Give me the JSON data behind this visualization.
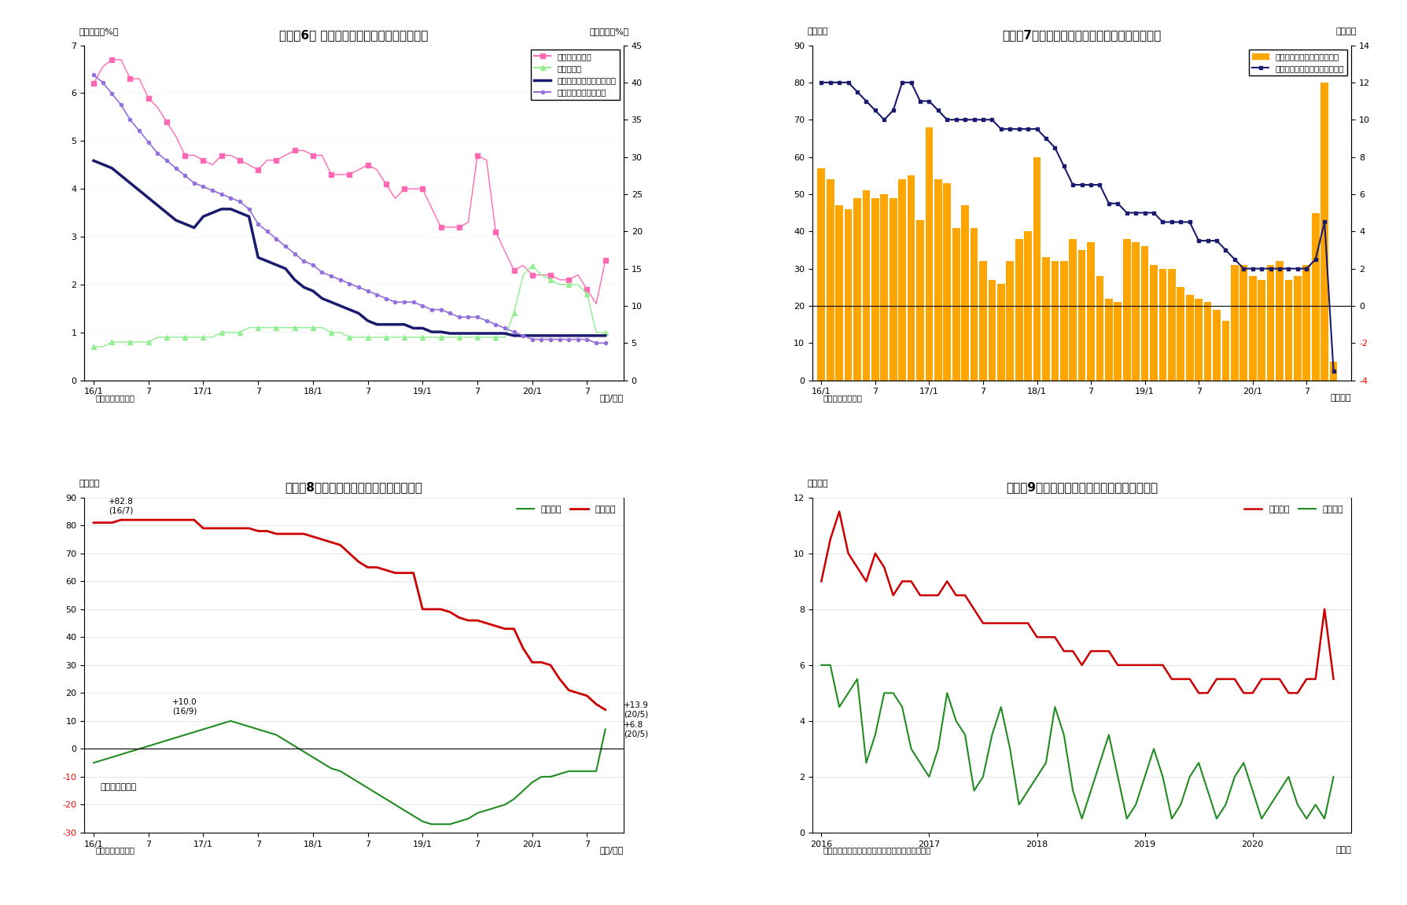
{
  "fig6": {
    "title": "（図表6） マネタリーベースと内訳（平残）",
    "left_ylabel": "（前年比、%）",
    "right_ylabel": "（前年比、%）",
    "xlabel": "（年/月）",
    "source": "（資料）日本銀行",
    "ylim_left": [
      0,
      7
    ],
    "ylim_right": [
      0,
      45
    ],
    "yticks_left": [
      0,
      1,
      2,
      3,
      4,
      5,
      6,
      7
    ],
    "yticks_right": [
      0,
      5,
      10,
      15,
      20,
      25,
      30,
      35,
      40,
      45
    ],
    "xtick_labels": [
      "16/1",
      "7",
      "17/1",
      "7",
      "18/1",
      "7",
      "19/1",
      "7",
      "20/1",
      "7"
    ],
    "xtick_pos": [
      0,
      6,
      12,
      18,
      24,
      30,
      36,
      42,
      48,
      54
    ],
    "nishin_label": "日銀券発行残高",
    "nishin_color": "#FF69B4",
    "nishin_data": [
      6.2,
      6.55,
      6.7,
      6.7,
      6.3,
      6.3,
      5.9,
      5.7,
      5.4,
      5.1,
      4.7,
      4.7,
      4.6,
      4.5,
      4.7,
      4.7,
      4.6,
      4.5,
      4.4,
      4.6,
      4.6,
      4.7,
      4.8,
      4.8,
      4.7,
      4.7,
      4.3,
      4.3,
      4.3,
      4.4,
      4.5,
      4.4,
      4.1,
      3.8,
      4.0,
      4.0,
      4.0,
      3.6,
      3.2,
      3.2,
      3.2,
      3.3,
      4.7,
      4.6,
      3.1,
      2.7,
      2.3,
      2.4,
      2.2,
      2.2,
      2.2,
      2.1,
      2.1,
      2.2,
      1.9,
      1.6,
      2.5
    ],
    "cash_label": "貨幣流通高",
    "cash_color": "#90EE90",
    "cash_data": [
      0.7,
      0.7,
      0.8,
      0.8,
      0.8,
      0.8,
      0.8,
      0.9,
      0.9,
      0.9,
      0.9,
      0.9,
      0.9,
      0.9,
      1.0,
      1.0,
      1.0,
      1.1,
      1.1,
      1.1,
      1.1,
      1.1,
      1.1,
      1.1,
      1.1,
      1.1,
      1.0,
      1.0,
      0.9,
      0.9,
      0.9,
      0.9,
      0.9,
      0.9,
      0.9,
      0.9,
      0.9,
      0.9,
      0.9,
      0.9,
      0.9,
      0.9,
      0.9,
      0.9,
      0.9,
      0.9,
      1.4,
      2.2,
      2.4,
      2.2,
      2.1,
      2.0,
      2.0,
      2.0,
      1.8,
      1.0,
      1.0
    ],
    "mb_label": "マネタリーベース（右軸）",
    "mb_color": "#1a1a6e",
    "mb_data": [
      29.5,
      29.0,
      28.5,
      27.5,
      26.5,
      25.5,
      24.5,
      23.5,
      22.5,
      21.5,
      21.0,
      20.5,
      22.0,
      22.5,
      23.0,
      23.0,
      22.5,
      22.0,
      16.5,
      16.0,
      15.5,
      15.0,
      13.5,
      12.5,
      12.0,
      11.0,
      10.5,
      10.0,
      9.5,
      9.0,
      8.0,
      7.5,
      7.5,
      7.5,
      7.5,
      7.0,
      7.0,
      6.5,
      6.5,
      6.3,
      6.3,
      6.3,
      6.3,
      6.3,
      6.3,
      6.3,
      6.0,
      6.0,
      6.0,
      6.0,
      6.0,
      6.0,
      6.0,
      6.0,
      6.0,
      6.0,
      6.0
    ],
    "res_label": "日銀当座預金（右軸）",
    "res_color": "#9370DB",
    "res_data": [
      41.0,
      40.0,
      38.5,
      37.0,
      35.0,
      33.5,
      32.0,
      30.5,
      29.5,
      28.5,
      27.5,
      26.5,
      26.0,
      25.5,
      25.0,
      24.5,
      24.0,
      23.0,
      21.0,
      20.0,
      19.0,
      18.0,
      17.0,
      16.0,
      15.5,
      14.5,
      14.0,
      13.5,
      13.0,
      12.5,
      12.0,
      11.5,
      11.0,
      10.5,
      10.5,
      10.5,
      10.0,
      9.5,
      9.5,
      9.0,
      8.5,
      8.5,
      8.5,
      8.0,
      7.5,
      7.0,
      6.5,
      6.0,
      5.5,
      5.5,
      5.5,
      5.5,
      5.5,
      5.5,
      5.5,
      5.0,
      5.0
    ]
  },
  "fig7": {
    "title": "（図表7）マネタリーベース残高と前月比の推移",
    "left_ylabel": "（兆円）",
    "right_ylabel": "（兆円）",
    "xlabel": "（年月）",
    "source": "（資料）日本銀行",
    "ylim_left": [
      0,
      90
    ],
    "ylim_right": [
      -4,
      14
    ],
    "yticks_left": [
      0,
      10,
      20,
      30,
      40,
      50,
      60,
      70,
      80,
      90
    ],
    "yticks_right": [
      -4,
      -2,
      0,
      2,
      4,
      6,
      8,
      10,
      12,
      14
    ],
    "xtick_labels": [
      "16/1",
      "7",
      "17/1",
      "7",
      "18/1",
      "7",
      "19/1",
      "7",
      "20/1",
      "7"
    ],
    "xtick_pos": [
      0,
      6,
      12,
      18,
      24,
      30,
      36,
      42,
      48,
      54
    ],
    "bar_color": "#FFA500",
    "line_color": "#1a1a6e",
    "bar_label": "季節調整済み前月差（右軸）",
    "line_label": "マネタリーベース末残の前年差",
    "bars": [
      57,
      54,
      47,
      46,
      49,
      51,
      49,
      50,
      49,
      54,
      55,
      43,
      68,
      54,
      53,
      41,
      47,
      41,
      32,
      27,
      26,
      32,
      38,
      40,
      60,
      33,
      32,
      32,
      38,
      35,
      37,
      28,
      22,
      21,
      38,
      37,
      36,
      31,
      30,
      30,
      25,
      23,
      22,
      21,
      19,
      16,
      31,
      31,
      28,
      27,
      31,
      32,
      27,
      28,
      31,
      45,
      80,
      5
    ],
    "line_data": [
      12,
      12,
      12,
      12,
      11.5,
      11,
      10.5,
      10,
      10.5,
      12,
      12,
      11,
      11,
      10.5,
      10,
      10,
      10,
      10,
      10,
      10,
      9.5,
      9.5,
      9.5,
      9.5,
      9.5,
      9,
      8.5,
      7.5,
      6.5,
      6.5,
      6.5,
      6.5,
      5.5,
      5.5,
      5,
      5,
      5,
      5,
      4.5,
      4.5,
      4.5,
      4.5,
      3.5,
      3.5,
      3.5,
      3,
      2.5,
      2,
      2,
      2,
      2,
      2,
      2,
      2,
      2,
      2.5,
      4.5,
      -3.5
    ]
  },
  "fig8": {
    "title": "（図表8）日銀国債保有残高の前年比増減",
    "left_ylabel": "（兆円）",
    "xlabel": "（年/月）",
    "source": "（資料）日本銀行",
    "note": "（月末ベース）",
    "ylim": [
      -30,
      90
    ],
    "yticks": [
      -30,
      -20,
      -10,
      0,
      10,
      20,
      30,
      40,
      50,
      60,
      70,
      80,
      90
    ],
    "xtick_labels": [
      "16/1",
      "7",
      "17/1",
      "7",
      "18/1",
      "7",
      "19/1",
      "7",
      "20/1",
      "7"
    ],
    "xtick_pos": [
      0,
      6,
      12,
      18,
      24,
      30,
      36,
      42,
      48,
      54
    ],
    "long_color": "#cc0000",
    "short_color": "#228B22",
    "long_label": "長期国債",
    "short_label": "短期国債",
    "long_data": [
      81,
      81,
      81,
      82,
      82,
      82,
      82,
      82,
      82,
      82,
      82,
      82,
      79,
      79,
      79,
      79,
      79,
      79,
      78,
      78,
      77,
      77,
      77,
      77,
      76,
      75,
      74,
      73,
      70,
      67,
      65,
      65,
      64,
      63,
      63,
      63,
      50,
      50,
      50,
      49,
      47,
      46,
      46,
      45,
      44,
      43,
      43,
      36,
      31,
      31,
      30,
      25,
      21,
      20,
      19,
      16,
      14
    ],
    "short_data": [
      -5,
      -4,
      -3,
      -2,
      -1,
      0,
      1,
      2,
      3,
      4,
      5,
      6,
      7,
      8,
      9,
      10,
      9,
      8,
      7,
      6,
      5,
      3,
      1,
      -1,
      -3,
      -5,
      -7,
      -8,
      -10,
      -12,
      -14,
      -16,
      -18,
      -20,
      -22,
      -24,
      -26,
      -27,
      -27,
      -27,
      -26,
      -25,
      -23,
      -22,
      -21,
      -20,
      -18,
      -15,
      -12,
      -10,
      -10,
      -9,
      -8,
      -8,
      -8,
      -8,
      7
    ]
  },
  "fig9": {
    "title": "（図表9）日銀の国債買入れ額（月次フロー）",
    "left_ylabel": "（兆円）",
    "xlabel": "（年）",
    "source": "（資料）日銀データよりニッセイ基礎研究所作成",
    "ylim": [
      0,
      12
    ],
    "yticks": [
      0,
      2,
      4,
      6,
      8,
      10,
      12
    ],
    "xtick_labels": [
      "2016",
      "2017",
      "2018",
      "2019",
      "2020"
    ],
    "xtick_pos": [
      0,
      12,
      24,
      36,
      48
    ],
    "long_color": "#cc0000",
    "short_color": "#228B22",
    "long_label": "長期国債",
    "short_label": "短期国債",
    "long_data": [
      9.0,
      10.5,
      11.5,
      10.0,
      9.5,
      9.0,
      10.0,
      9.5,
      8.5,
      9.0,
      9.0,
      8.5,
      8.5,
      8.5,
      9.0,
      8.5,
      8.5,
      8.0,
      7.5,
      7.5,
      7.5,
      7.5,
      7.5,
      7.5,
      7.0,
      7.0,
      7.0,
      6.5,
      6.5,
      6.0,
      6.5,
      6.5,
      6.5,
      6.0,
      6.0,
      6.0,
      6.0,
      6.0,
      6.0,
      5.5,
      5.5,
      5.5,
      5.0,
      5.0,
      5.5,
      5.5,
      5.5,
      5.0,
      5.0,
      5.5,
      5.5,
      5.5,
      5.0,
      5.0,
      5.5,
      5.5,
      8.0,
      5.5
    ],
    "short_data": [
      6.0,
      6.0,
      4.5,
      5.0,
      5.5,
      2.5,
      3.5,
      5.0,
      5.0,
      4.5,
      3.0,
      2.5,
      2.0,
      3.0,
      5.0,
      4.0,
      3.5,
      1.5,
      2.0,
      3.5,
      4.5,
      3.0,
      1.0,
      1.5,
      2.0,
      2.5,
      4.5,
      3.5,
      1.5,
      0.5,
      1.5,
      2.5,
      3.5,
      2.0,
      0.5,
      1.0,
      2.0,
      3.0,
      2.0,
      0.5,
      1.0,
      2.0,
      2.5,
      1.5,
      0.5,
      1.0,
      2.0,
      2.5,
      1.5,
      0.5,
      1.0,
      1.5,
      2.0,
      1.0,
      0.5,
      1.0,
      0.5,
      2.0
    ]
  }
}
